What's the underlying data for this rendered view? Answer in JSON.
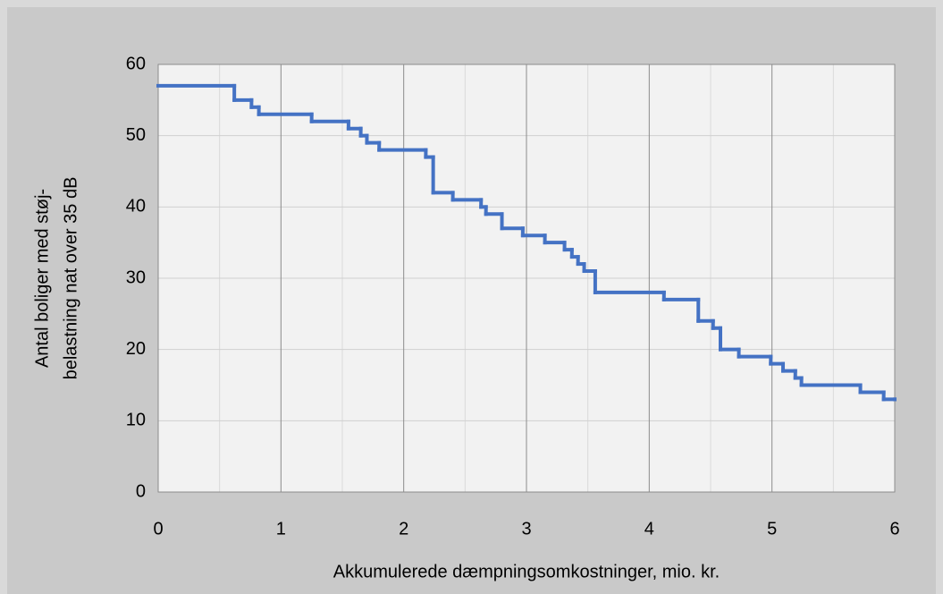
{
  "chart_data": {
    "type": "line",
    "step": "post",
    "xlabel": "Akkumulerede dæmpningsomkostninger, mio. kr.",
    "ylabel": [
      "Antal boliger med støj-",
      "belastning nat over 35 dB"
    ],
    "series": [
      {
        "color": "#4472c4",
        "x": [
          0,
          0.62,
          0.76,
          0.82,
          1.25,
          1.55,
          1.65,
          1.7,
          1.8,
          2.18,
          2.24,
          2.4,
          2.63,
          2.67,
          2.8,
          2.97,
          3.15,
          3.31,
          3.37,
          3.42,
          3.47,
          3.56,
          4.12,
          4.4,
          4.52,
          4.58,
          4.73,
          4.99,
          5.09,
          5.19,
          5.24,
          5.72,
          5.91,
          6
        ],
        "values": [
          57,
          55,
          54,
          53,
          52,
          51,
          50,
          49,
          48,
          47,
          42,
          41,
          40,
          39,
          37,
          36,
          35,
          34,
          33,
          32,
          31,
          28,
          27,
          24,
          23,
          20,
          19,
          18,
          17,
          16,
          15,
          14,
          13,
          13
        ]
      }
    ],
    "xlim": [
      0,
      6
    ],
    "xticks": [
      0,
      1,
      2,
      3,
      4,
      5,
      6
    ],
    "xminor": [
      0.5,
      1.5,
      2.5,
      3.5,
      4.5,
      5.5
    ],
    "ylim": [
      0,
      60
    ],
    "yticks": [
      0,
      10,
      20,
      30,
      40,
      50,
      60
    ],
    "grid": true
  }
}
